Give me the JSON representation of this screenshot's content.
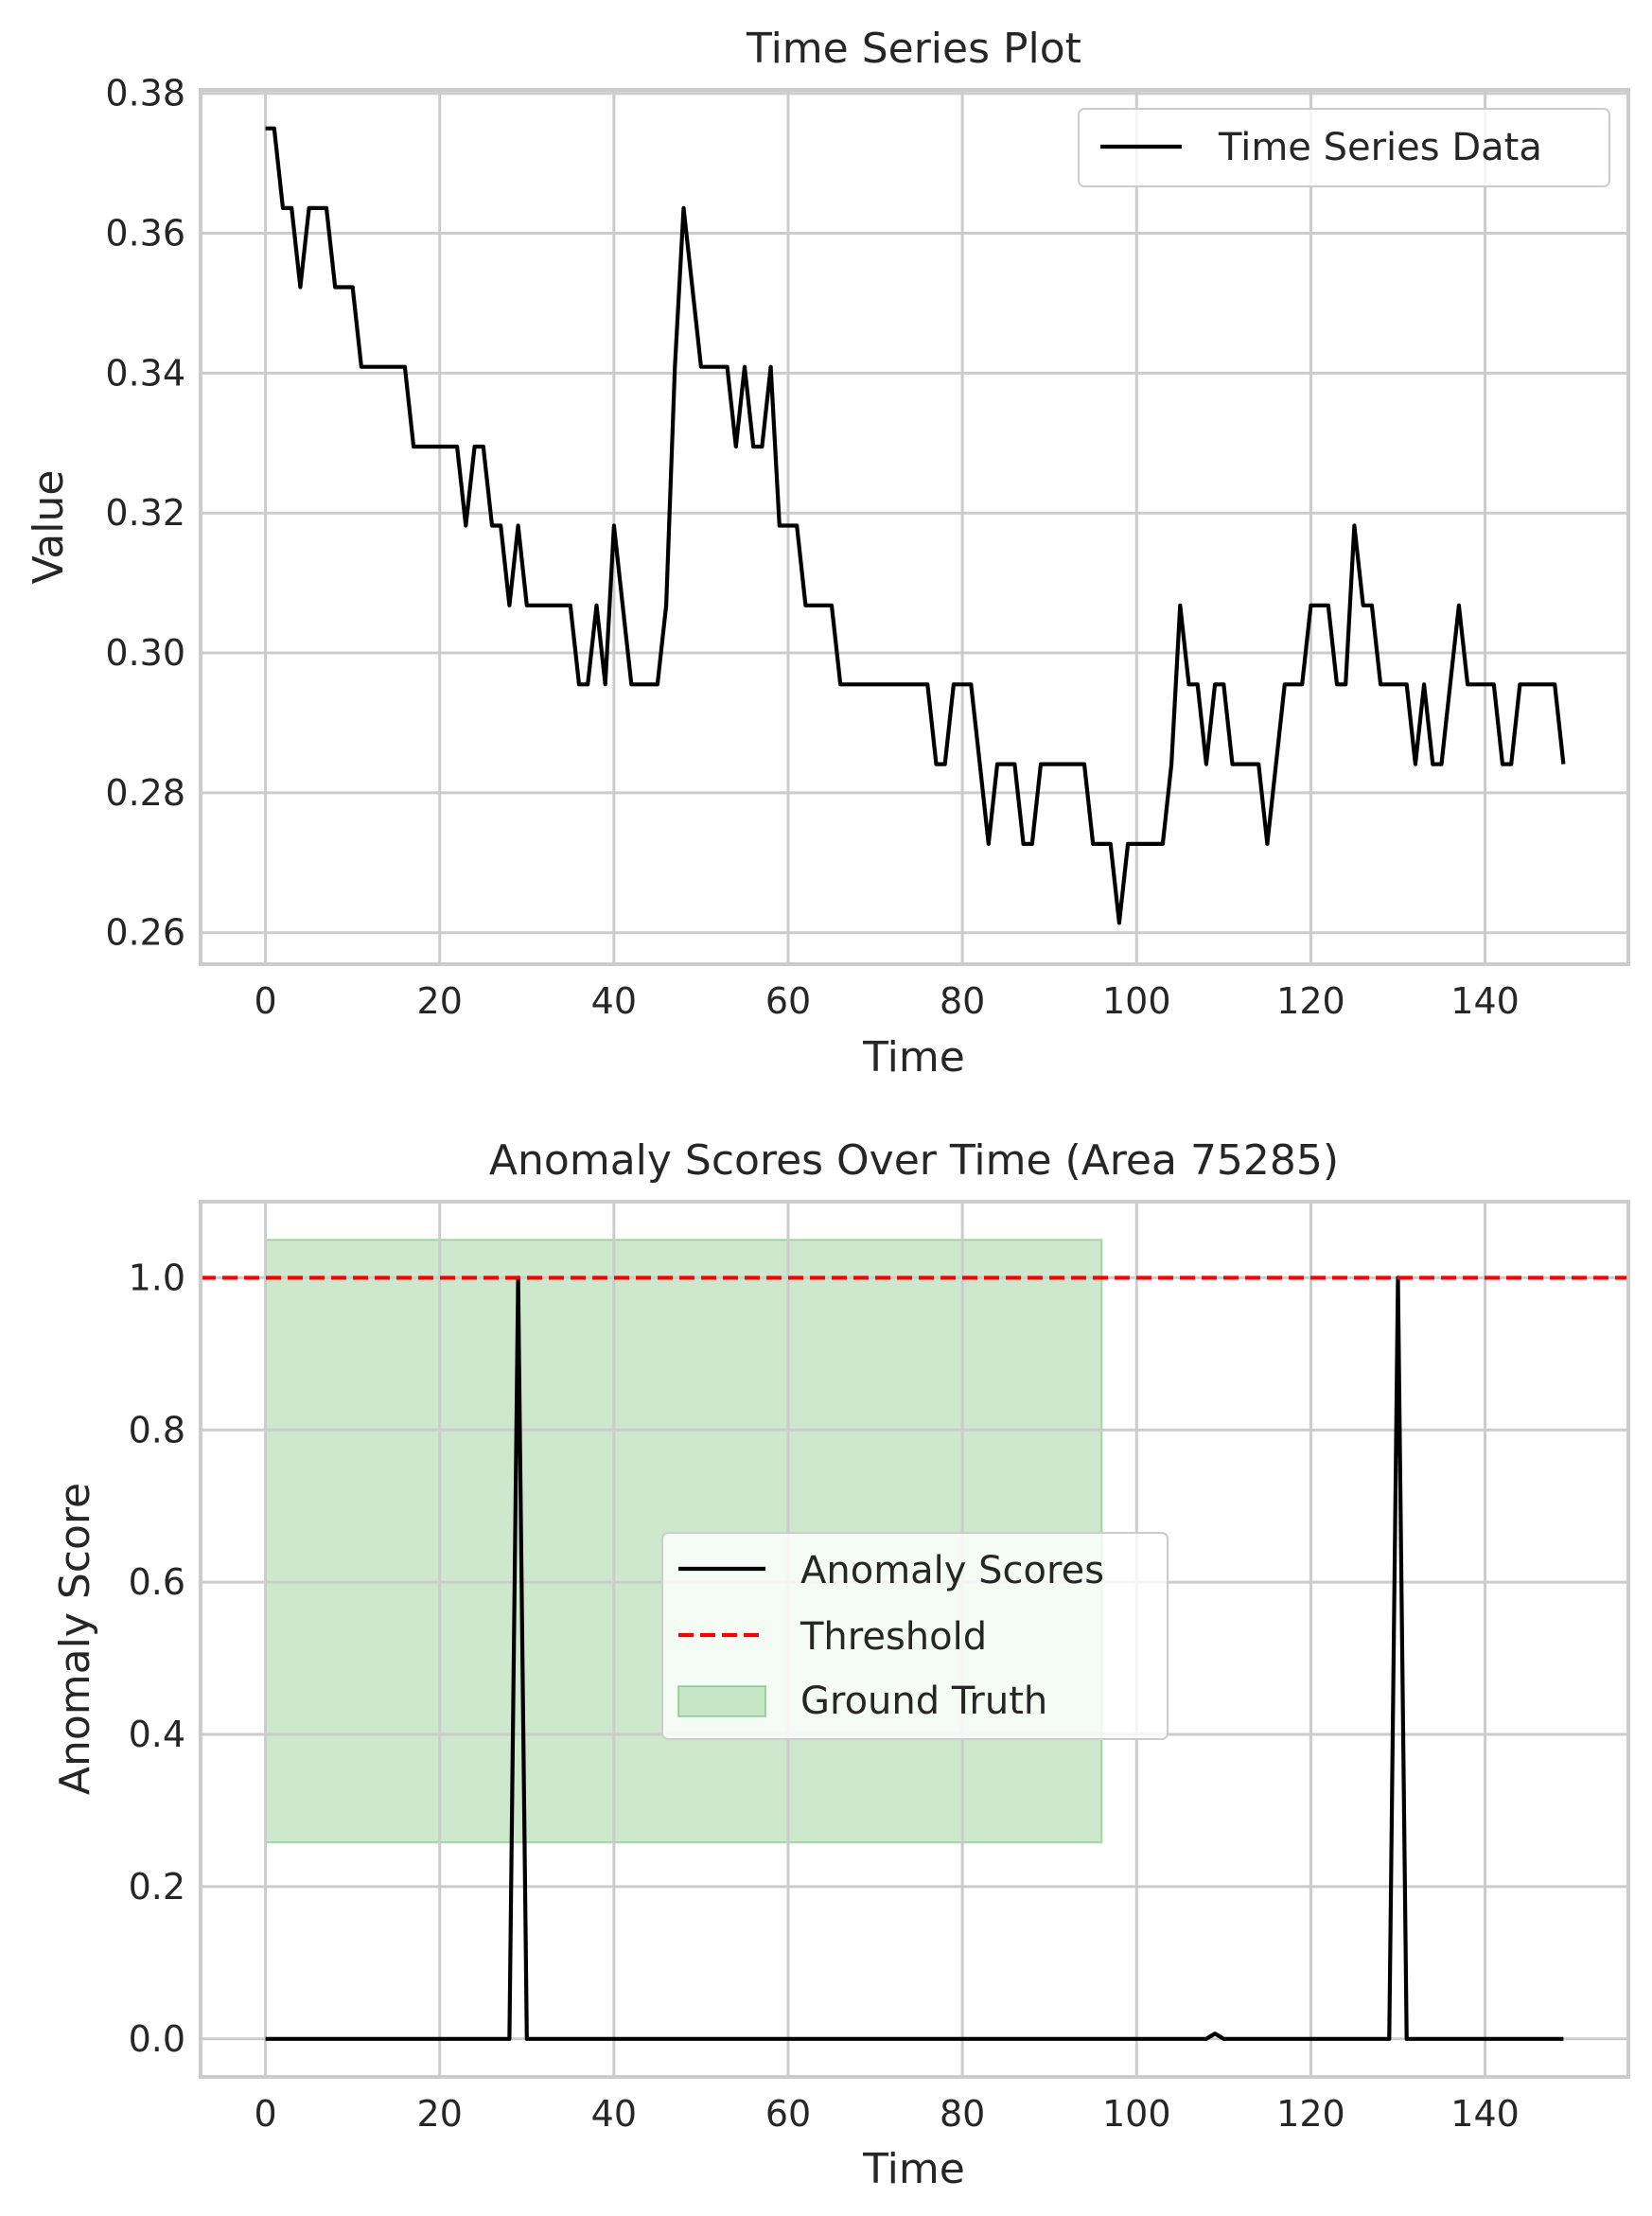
{
  "chart_data": [
    {
      "type": "line",
      "title": "Time Series Plot",
      "xlabel": "Time",
      "ylabel": "Value",
      "xlim": [
        -7.45,
        156.45
      ],
      "ylim": [
        0.2555,
        0.3805
      ],
      "xticks": [
        0,
        20,
        40,
        60,
        80,
        100,
        120,
        140
      ],
      "xtick_labels": [
        "0",
        "20",
        "40",
        "60",
        "80",
        "100",
        "120",
        "140"
      ],
      "yticks": [
        0.26,
        0.28,
        0.3,
        0.32,
        0.34,
        0.36,
        0.38
      ],
      "ytick_labels": [
        "0.26",
        "0.28",
        "0.30",
        "0.32",
        "0.34",
        "0.36",
        "0.38"
      ],
      "grid": true,
      "legend_position": "top-right",
      "series": [
        {
          "name": "Time Series Data",
          "color": "#000000",
          "x": [
            0,
            1,
            2,
            3,
            4,
            5,
            6,
            7,
            8,
            9,
            10,
            11,
            12,
            13,
            14,
            15,
            16,
            17,
            18,
            19,
            20,
            21,
            22,
            23,
            24,
            25,
            26,
            27,
            28,
            29,
            30,
            31,
            32,
            33,
            34,
            35,
            36,
            37,
            38,
            39,
            40,
            41,
            42,
            43,
            44,
            45,
            46,
            47,
            48,
            49,
            50,
            51,
            52,
            53,
            54,
            55,
            56,
            57,
            58,
            59,
            60,
            61,
            62,
            63,
            64,
            65,
            66,
            67,
            68,
            69,
            70,
            71,
            72,
            73,
            74,
            75,
            76,
            77,
            78,
            79,
            80,
            81,
            82,
            83,
            84,
            85,
            86,
            87,
            88,
            89,
            90,
            91,
            92,
            93,
            94,
            95,
            96,
            97,
            98,
            99,
            100,
            101,
            102,
            103,
            104,
            105,
            106,
            107,
            108,
            109,
            110,
            111,
            112,
            113,
            114,
            115,
            116,
            117,
            118,
            119,
            120,
            121,
            122,
            123,
            124,
            125,
            126,
            127,
            128,
            129,
            130,
            131,
            132,
            133,
            134,
            135,
            136,
            137,
            138,
            139,
            140,
            141,
            142,
            143,
            144,
            145,
            146,
            147,
            148,
            149
          ],
          "values": [
            0.375,
            0.375,
            0.3636,
            0.3636,
            0.3523,
            0.3636,
            0.3636,
            0.3636,
            0.3523,
            0.3523,
            0.3523,
            0.3409,
            0.3409,
            0.3409,
            0.3409,
            0.3409,
            0.3409,
            0.3295,
            0.3295,
            0.3295,
            0.3295,
            0.3295,
            0.3295,
            0.3182,
            0.3295,
            0.3295,
            0.3182,
            0.3182,
            0.3068,
            0.3182,
            0.3068,
            0.3068,
            0.3068,
            0.3068,
            0.3068,
            0.3068,
            0.2955,
            0.2955,
            0.3068,
            0.2955,
            0.3182,
            0.3068,
            0.2955,
            0.2955,
            0.2955,
            0.2955,
            0.3068,
            0.3409,
            0.3636,
            0.3523,
            0.3409,
            0.3409,
            0.3409,
            0.3409,
            0.3295,
            0.3409,
            0.3295,
            0.3295,
            0.3409,
            0.3182,
            0.3182,
            0.3182,
            0.3068,
            0.3068,
            0.3068,
            0.3068,
            0.2955,
            0.2955,
            0.2955,
            0.2955,
            0.2955,
            0.2955,
            0.2955,
            0.2955,
            0.2955,
            0.2955,
            0.2955,
            0.2841,
            0.2841,
            0.2955,
            0.2955,
            0.2955,
            0.2841,
            0.2727,
            0.2841,
            0.2841,
            0.2841,
            0.2727,
            0.2727,
            0.2841,
            0.2841,
            0.2841,
            0.2841,
            0.2841,
            0.2841,
            0.2727,
            0.2727,
            0.2727,
            0.2614,
            0.2727,
            0.2727,
            0.2727,
            0.2727,
            0.2727,
            0.2841,
            0.3068,
            0.2955,
            0.2955,
            0.2841,
            0.2955,
            0.2955,
            0.2841,
            0.2841,
            0.2841,
            0.2841,
            0.2727,
            0.2841,
            0.2955,
            0.2955,
            0.2955,
            0.3068,
            0.3068,
            0.3068,
            0.2955,
            0.2955,
            0.3182,
            0.3068,
            0.3068,
            0.2955,
            0.2955,
            0.2955,
            0.2955,
            0.2841,
            0.2955,
            0.2841,
            0.2841,
            0.2955,
            0.3068,
            0.2955,
            0.2955,
            0.2955,
            0.2955,
            0.2841,
            0.2841,
            0.2955,
            0.2955,
            0.2955,
            0.2955,
            0.2955,
            0.2841
          ]
        }
      ]
    },
    {
      "type": "line",
      "title": "Anomaly Scores Over Time (Area 75285)",
      "xlabel": "Time",
      "ylabel": "Anomaly Score",
      "xlim": [
        -7.45,
        156.45
      ],
      "ylim": [
        -0.05,
        1.1
      ],
      "xticks": [
        0,
        20,
        40,
        60,
        80,
        100,
        120,
        140
      ],
      "xtick_labels": [
        "0",
        "20",
        "40",
        "60",
        "80",
        "100",
        "120",
        "140"
      ],
      "yticks": [
        0.0,
        0.2,
        0.4,
        0.6,
        0.8,
        1.0
      ],
      "ytick_labels": [
        "0.0",
        "0.2",
        "0.4",
        "0.6",
        "0.8",
        "1.0"
      ],
      "grid": true,
      "legend_position": "center",
      "series": [
        {
          "name": "Anomaly Scores",
          "color": "#000000",
          "x": [
            0,
            28,
            29,
            30,
            108,
            109,
            110,
            129,
            130,
            131,
            149
          ],
          "values": [
            0,
            0,
            1.0,
            0,
            0,
            0.007,
            0,
            0,
            1.0,
            0,
            0
          ]
        },
        {
          "name": "Threshold",
          "color": "#ff0000",
          "style": "dashed",
          "value": 1.0
        },
        {
          "name": "Ground Truth",
          "color": "#2ca02c",
          "fill_opacity": 0.24,
          "x_range": [
            0,
            96
          ],
          "y_range": [
            0.258,
            1.05
          ]
        }
      ]
    }
  ]
}
